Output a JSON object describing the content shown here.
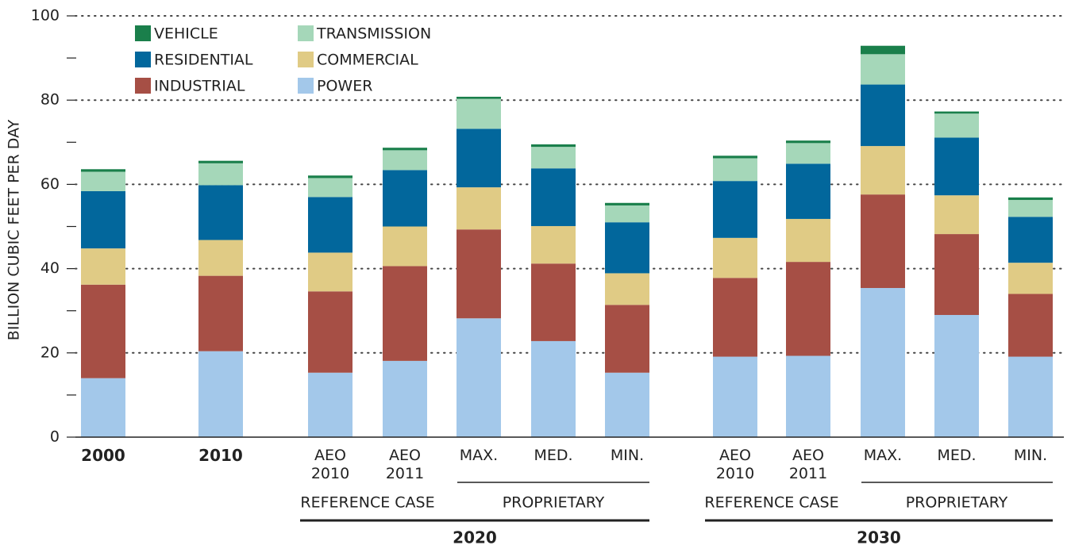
{
  "chart_data": {
    "type": "bar",
    "stacked": true,
    "y_label": "BILLION CUBIC FEET PER DAY",
    "categories": [
      "2000",
      "2010",
      "AEO\n2010",
      "AEO\n2011",
      "MAX.",
      "MED.",
      "MIN.",
      "AEO\n2010",
      "AEO\n2011",
      "MAX.",
      "MED.",
      "MIN."
    ],
    "groups": [
      {
        "label": "2020",
        "subgroups": [
          {
            "label": "REFERENCE CASE"
          },
          {
            "label": "PROPRIETARY"
          }
        ]
      },
      {
        "label": "2030",
        "subgroups": [
          {
            "label": "REFERENCE CASE"
          },
          {
            "label": "PROPRIETARY"
          }
        ]
      }
    ],
    "series": [
      {
        "name": "POWER",
        "color": "#a3c8ea",
        "values": [
          14,
          20.4,
          15.3,
          18.1,
          28.2,
          22.8,
          15.3,
          19.1,
          19.3,
          35.4,
          29,
          19.1
        ]
      },
      {
        "name": "INDUSTRIAL",
        "color": "#a64f45",
        "values": [
          22.2,
          17.9,
          19.3,
          22.5,
          21.1,
          18.4,
          16.1,
          18.7,
          22.3,
          22.2,
          19.2,
          14.9
        ]
      },
      {
        "name": "COMMERCIAL",
        "color": "#e0cb85",
        "values": [
          8.6,
          8.5,
          9.2,
          9.4,
          10,
          8.9,
          7.5,
          9.5,
          10.2,
          11.5,
          9.2,
          7.4
        ]
      },
      {
        "name": "RESIDENTIAL",
        "color": "#02679c",
        "values": [
          13.6,
          13,
          13.2,
          13.4,
          13.9,
          13.7,
          12.1,
          13.5,
          13.1,
          14.6,
          13.7,
          10.9
        ]
      },
      {
        "name": "TRANSMISSION",
        "color": "#a5d7b9",
        "values": [
          4.6,
          5.2,
          4.5,
          4.7,
          7.1,
          5.1,
          4,
          5.4,
          4.9,
          7.2,
          5.7,
          4
        ]
      },
      {
        "name": "VEHICLE",
        "color": "#1a7f4b",
        "values": [
          0.6,
          0.6,
          0.6,
          0.6,
          0.5,
          0.6,
          0.6,
          0.6,
          0.6,
          2,
          0.5,
          0.6
        ]
      }
    ],
    "ylim": [
      0,
      100
    ],
    "yticks": [
      0,
      20,
      40,
      60,
      80,
      100
    ],
    "yminor": [
      10,
      30,
      50,
      70,
      90
    ],
    "grid": true,
    "legend": "top-left"
  }
}
